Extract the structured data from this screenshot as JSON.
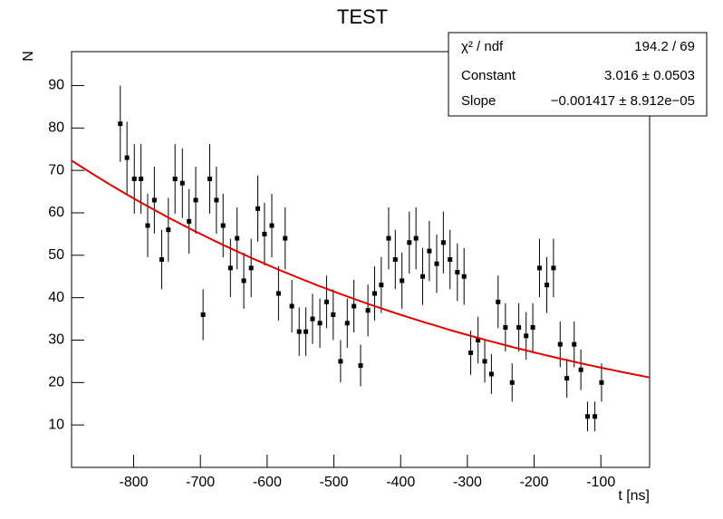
{
  "chart_data": {
    "type": "scatter",
    "title": "TEST",
    "y_label": "N",
    "x_label": "t [ns]",
    "x": [
      -820,
      -810,
      -799,
      -789,
      -779,
      -769,
      -758,
      -748,
      -738,
      -727,
      -717,
      -707,
      -696,
      -686,
      -676,
      -666,
      -655,
      -645,
      -635,
      -624,
      -614,
      -604,
      -593,
      -583,
      -573,
      -563,
      -552,
      -542,
      -532,
      -521,
      -511,
      -501,
      -490,
      -480,
      -470,
      -460,
      -449,
      -439,
      -429,
      -418,
      -408,
      -398,
      -387,
      -377,
      -367,
      -357,
      -346,
      -336,
      -326,
      -315,
      -305,
      -295,
      -284,
      -274,
      -264,
      -254,
      -243,
      -233,
      -223,
      -212,
      -202,
      -192,
      -181,
      -171,
      -161,
      -151,
      -140,
      -130,
      -120,
      -109,
      -99
    ],
    "values": [
      81,
      73,
      68,
      68,
      57,
      63,
      49,
      56,
      68,
      67,
      58,
      63,
      36,
      68,
      63,
      57,
      47,
      54,
      44,
      47,
      61,
      55,
      57,
      41,
      54,
      38,
      32,
      32,
      35,
      34,
      39,
      36,
      25,
      34,
      38,
      24,
      37,
      41,
      43,
      54,
      49,
      44,
      53,
      54,
      45,
      51,
      48,
      53,
      49,
      46,
      45,
      27,
      30,
      25,
      22,
      39,
      33,
      20,
      33,
      31,
      33,
      47,
      43,
      47,
      29,
      21,
      29,
      23,
      12,
      12,
      20
    ],
    "errors": [
      9.0,
      8.5,
      8.2,
      8.2,
      7.5,
      7.9,
      7.0,
      7.5,
      8.2,
      8.2,
      7.6,
      7.9,
      6.0,
      8.2,
      7.9,
      7.5,
      6.9,
      7.3,
      6.6,
      6.9,
      7.8,
      7.4,
      7.5,
      6.4,
      7.3,
      6.2,
      5.7,
      5.7,
      5.9,
      5.8,
      6.2,
      6.0,
      5.0,
      5.8,
      6.2,
      4.9,
      6.1,
      6.4,
      6.6,
      7.3,
      7.0,
      6.6,
      7.3,
      7.3,
      6.7,
      7.1,
      6.9,
      7.3,
      7.0,
      6.8,
      6.7,
      5.2,
      5.5,
      5.0,
      4.7,
      6.2,
      5.7,
      4.5,
      5.7,
      5.6,
      5.7,
      6.9,
      6.6,
      6.9,
      5.4,
      4.6,
      5.4,
      4.8,
      3.5,
      3.5,
      4.5
    ],
    "color": "#000000",
    "fit": {
      "constant": 3.016,
      "slope": -0.001417,
      "color": "#e00000"
    },
    "stats": [
      [
        "χ² / ndf",
        "194.2 / 69"
      ],
      [
        "Constant",
        "3.016 ± 0.0503"
      ],
      [
        "Slope",
        "−0.001417 ± 8.912e−05"
      ]
    ],
    "xlim": [
      -893,
      -27
    ],
    "ylim": [
      0,
      98
    ],
    "xticks": [
      -800,
      -700,
      -600,
      -500,
      -400,
      -300,
      -200,
      -100
    ],
    "yticks": [
      10,
      20,
      30,
      40,
      50,
      60,
      70,
      80,
      90
    ]
  }
}
